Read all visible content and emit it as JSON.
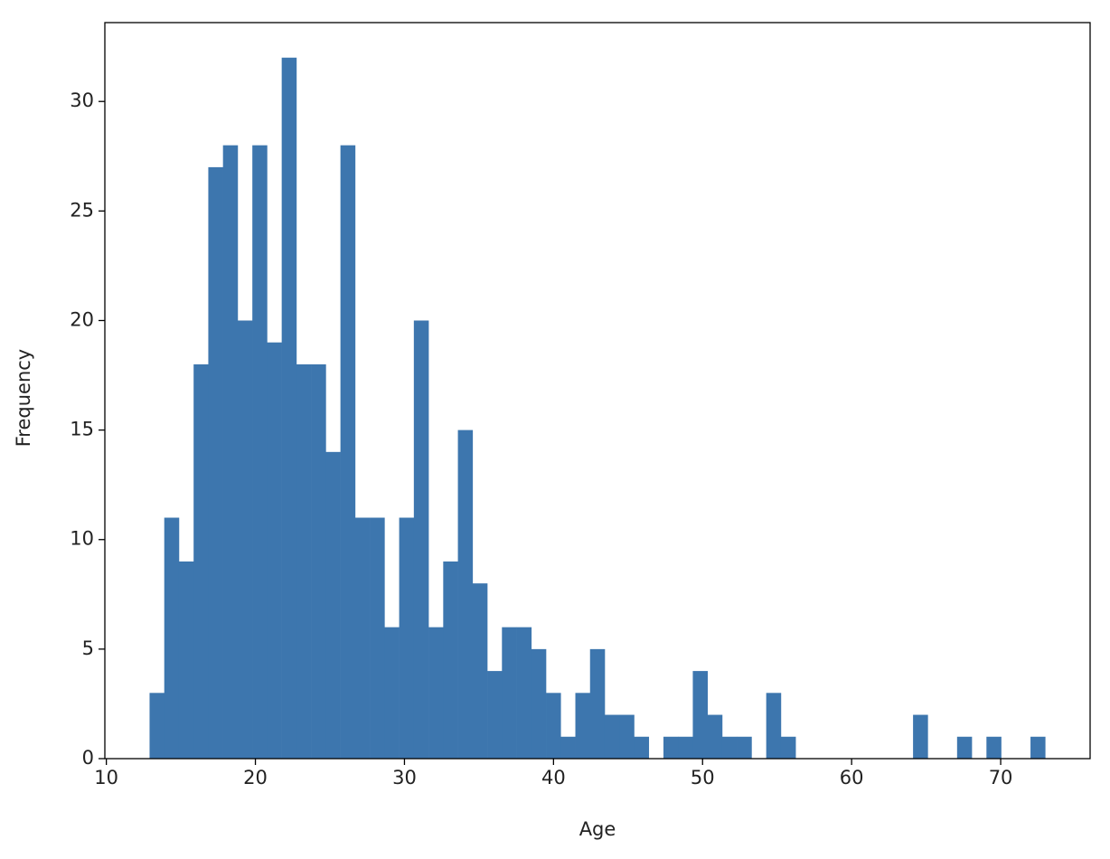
{
  "chart_data": {
    "type": "histogram",
    "xlabel": "Age",
    "ylabel": "Frequency",
    "color": "#3d76ae",
    "bins": [
      12.9,
      13.885,
      14.87,
      15.855,
      16.84,
      17.825,
      18.81,
      19.795,
      20.78,
      21.765,
      22.75,
      23.735,
      24.72,
      25.705,
      26.69,
      27.675,
      28.66,
      29.645,
      30.63,
      31.615,
      32.6,
      33.585,
      34.57,
      35.555,
      36.54,
      37.525,
      38.51,
      39.495,
      40.48,
      41.465,
      42.45,
      43.435,
      44.42,
      45.405,
      46.39,
      47.375,
      48.36,
      49.345,
      50.33,
      51.315,
      52.3,
      53.285,
      54.27,
      55.255,
      56.24,
      57.225,
      58.21,
      59.195,
      60.18,
      61.165,
      62.15,
      63.135,
      64.12,
      65.105,
      66.09,
      67.075,
      68.06,
      69.045,
      70.03,
      71.015,
      72.0,
      72.985
    ],
    "counts": [
      3,
      11,
      9,
      18,
      27,
      28,
      20,
      28,
      19,
      32,
      18,
      18,
      14,
      28,
      11,
      11,
      6,
      11,
      20,
      6,
      9,
      15,
      8,
      4,
      6,
      6,
      5,
      3,
      1,
      3,
      5,
      2,
      2,
      1,
      0,
      1,
      1,
      4,
      2,
      1,
      1,
      0,
      3,
      1,
      0,
      0,
      0,
      0,
      0,
      0,
      0,
      0,
      2,
      0,
      0,
      1,
      0,
      1,
      0,
      0,
      1
    ],
    "xlim": [
      9.9,
      76.0
    ],
    "xticks": [
      10,
      20,
      30,
      40,
      50,
      60,
      70
    ],
    "ylim": [
      0,
      33.6
    ],
    "yticks": [
      0,
      5,
      10,
      15,
      20,
      25,
      30
    ]
  }
}
